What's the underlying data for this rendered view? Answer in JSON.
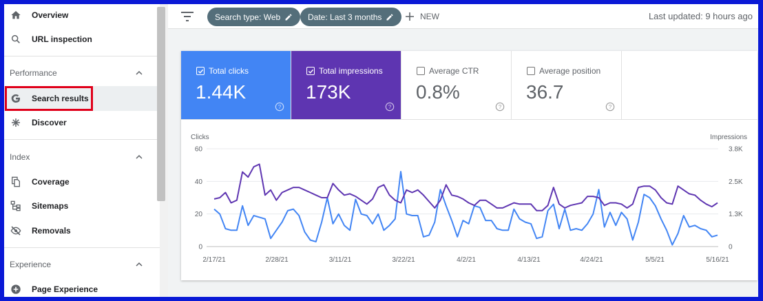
{
  "sidebar": {
    "overview": "Overview",
    "url_inspection": "URL inspection",
    "performance": {
      "label": "Performance",
      "items": [
        "Search results",
        "Discover"
      ]
    },
    "index": {
      "label": "Index",
      "items": [
        "Coverage",
        "Sitemaps",
        "Removals"
      ]
    },
    "experience": {
      "label": "Experience",
      "items": [
        "Page Experience"
      ]
    }
  },
  "toolbar": {
    "chips": [
      "Search type: Web",
      "Date: Last 3 months"
    ],
    "new_label": "NEW",
    "last_updated": "Last updated: 9 hours ago"
  },
  "metrics": [
    {
      "label": "Total clicks",
      "value": "1.44K",
      "checked": true,
      "color": "#4285f4"
    },
    {
      "label": "Total impressions",
      "value": "173K",
      "checked": true,
      "color": "#5e35b1"
    },
    {
      "label": "Average CTR",
      "value": "0.8%",
      "checked": false
    },
    {
      "label": "Average position",
      "value": "36.7",
      "checked": false
    }
  ],
  "chart_data": {
    "type": "line",
    "left_axis_label": "Clicks",
    "right_axis_label": "Impressions",
    "left_ticks": [
      "60",
      "40",
      "20",
      "0"
    ],
    "right_ticks": [
      "3.8K",
      "2.5K",
      "1.3K",
      "0"
    ],
    "ylim_left": [
      0,
      60
    ],
    "ylim_right": [
      0,
      3800
    ],
    "x_tick_labels": [
      "2/17/21",
      "2/28/21",
      "3/11/21",
      "3/22/21",
      "4/2/21",
      "4/13/21",
      "4/24/21",
      "5/5/21",
      "5/16/21"
    ],
    "grid": true,
    "series": [
      {
        "name": "Clicks",
        "axis": "left",
        "color": "#4285f4",
        "values": [
          23,
          20,
          11,
          10,
          10,
          25,
          13,
          19,
          18,
          17,
          5,
          10,
          15,
          22,
          23,
          19,
          9,
          4,
          3,
          15,
          30,
          14,
          20,
          13,
          10,
          29,
          20,
          19,
          14,
          20,
          10,
          13,
          17,
          46,
          20,
          19,
          19,
          6,
          7,
          15,
          35,
          25,
          16,
          6,
          16,
          14,
          25,
          24,
          16,
          16,
          11,
          10,
          10,
          23,
          17,
          15,
          14,
          5,
          6,
          22,
          26,
          11,
          23,
          10,
          11,
          10,
          14,
          20,
          35,
          12,
          21,
          13,
          21,
          17,
          4,
          15,
          32,
          30,
          25,
          17,
          10,
          1,
          8,
          19,
          12,
          13,
          11,
          10,
          6,
          7
        ]
      },
      {
        "name": "Impressions",
        "axis": "right",
        "color": "#5e35b1",
        "values": [
          1850,
          1900,
          2100,
          1700,
          1800,
          2900,
          2700,
          3100,
          3200,
          2000,
          2200,
          1800,
          2100,
          2200,
          2300,
          2300,
          2200,
          2100,
          2000,
          1900,
          1900,
          2450,
          2200,
          2000,
          2050,
          1950,
          1800,
          1650,
          1850,
          2300,
          2400,
          2000,
          1800,
          1700,
          2200,
          2100,
          2200,
          2000,
          1750,
          1500,
          1800,
          2400,
          2000,
          1950,
          1850,
          1700,
          1600,
          1800,
          1800,
          1650,
          1500,
          1500,
          1600,
          1700,
          1650,
          1650,
          1650,
          1400,
          1400,
          1600,
          2300,
          1650,
          1500,
          1600,
          1650,
          1700,
          1950,
          1950,
          1900,
          1600,
          1700,
          1700,
          1650,
          1500,
          1650,
          2300,
          2350,
          2350,
          2200,
          1900,
          1700,
          1650,
          2350,
          2200,
          2050,
          2000,
          1800,
          1650,
          1550,
          1700
        ]
      }
    ]
  }
}
